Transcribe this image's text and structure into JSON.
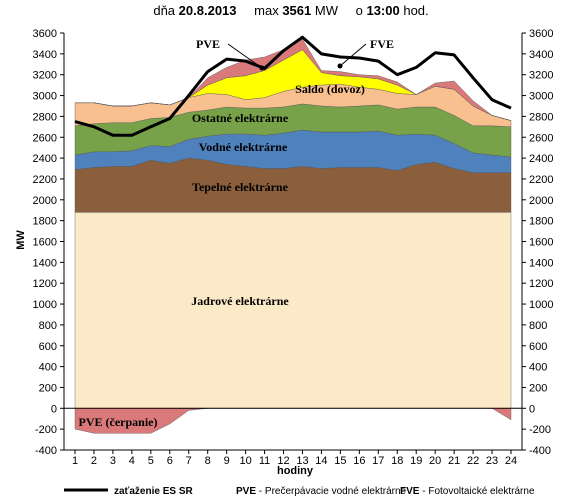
{
  "header": {
    "prefix": "dňa",
    "date": "20.8.2013",
    "max_label": "max",
    "max_value": "3561",
    "max_unit": "MW",
    "time_prefix": "o",
    "time": "13:00",
    "time_unit": "hod."
  },
  "legend": {
    "load": {
      "key": "zaťaženie ES SR",
      "desc": ""
    },
    "pve": {
      "key": "PVE",
      "desc": " - Prečerpávacie vodné elektrárne"
    },
    "fve": {
      "key": "FVE",
      "desc": " - Fotovoltaické elektrárne"
    }
  },
  "chart_data": {
    "type": "area",
    "stacked": true,
    "xlabel": "hodiny",
    "ylabel": "MW",
    "ylim": [
      -400,
      3600
    ],
    "y_ticks": [
      -400,
      -200,
      0,
      200,
      400,
      600,
      800,
      1000,
      1200,
      1400,
      1600,
      1800,
      2000,
      2200,
      2400,
      2600,
      2800,
      3000,
      3200,
      3400,
      3600
    ],
    "x": [
      1,
      2,
      3,
      4,
      5,
      6,
      7,
      8,
      9,
      10,
      11,
      12,
      13,
      14,
      15,
      16,
      17,
      18,
      19,
      20,
      21,
      22,
      23,
      24
    ],
    "grid": false,
    "secondary_axis": true,
    "series": [
      {
        "name": "Jadrové elektrárne",
        "color": "#fce9c8",
        "values": [
          1880,
          1880,
          1880,
          1880,
          1880,
          1880,
          1880,
          1880,
          1880,
          1880,
          1880,
          1880,
          1880,
          1880,
          1880,
          1880,
          1880,
          1880,
          1880,
          1880,
          1880,
          1880,
          1880,
          1880
        ]
      },
      {
        "name": "Tepelné elektrárne",
        "color": "#8b5e3c",
        "values": [
          410,
          430,
          440,
          440,
          500,
          470,
          520,
          500,
          460,
          440,
          420,
          420,
          440,
          420,
          430,
          430,
          430,
          400,
          460,
          480,
          420,
          380,
          380,
          380
        ]
      },
      {
        "name": "Vodné elektrárne",
        "color": "#4f81bd",
        "values": [
          140,
          150,
          140,
          150,
          140,
          160,
          180,
          230,
          290,
          310,
          320,
          340,
          350,
          350,
          340,
          340,
          350,
          340,
          290,
          260,
          240,
          190,
          170,
          150
        ]
      },
      {
        "name": "Ostatné elektrárne",
        "color": "#77a24a",
        "values": [
          280,
          270,
          280,
          270,
          260,
          280,
          260,
          250,
          260,
          250,
          260,
          250,
          250,
          250,
          240,
          250,
          250,
          250,
          260,
          270,
          270,
          260,
          280,
          290
        ]
      },
      {
        "name": "Saldo (dovoz)",
        "color": "#f9c08f",
        "values": [
          220,
          200,
          160,
          160,
          150,
          120,
          140,
          160,
          120,
          80,
          100,
          150,
          160,
          200,
          220,
          180,
          150,
          150,
          120,
          200,
          250,
          190,
          100,
          60
        ]
      },
      {
        "name": "FVE",
        "color": "#ffff00",
        "values": [
          0,
          0,
          0,
          0,
          0,
          0,
          0,
          80,
          160,
          230,
          260,
          300,
          360,
          120,
          80,
          100,
          100,
          80,
          0,
          0,
          0,
          0,
          0,
          0
        ]
      },
      {
        "name": "PVE",
        "color": "#d9797a",
        "values": [
          0,
          0,
          0,
          0,
          0,
          0,
          0,
          70,
          100,
          150,
          130,
          100,
          100,
          20,
          40,
          20,
          30,
          30,
          0,
          30,
          80,
          50,
          0,
          0
        ]
      },
      {
        "name": "PVE (čerpanie)",
        "color": "#d9797a",
        "negative": true,
        "values": [
          -200,
          -240,
          -240,
          -240,
          -240,
          -150,
          -20,
          0,
          0,
          0,
          0,
          0,
          0,
          0,
          0,
          0,
          0,
          0,
          0,
          0,
          0,
          0,
          0,
          -110
        ]
      },
      {
        "name": "zaťaženie ES SR",
        "color": "#000000",
        "line": true,
        "values": [
          2750,
          2700,
          2620,
          2620,
          2700,
          2780,
          3000,
          3230,
          3350,
          3330,
          3260,
          3430,
          3560,
          3400,
          3370,
          3360,
          3330,
          3200,
          3270,
          3410,
          3390,
          3170,
          2960,
          2880
        ]
      }
    ],
    "area_labels": [
      "Jadrové elektrárne",
      "Tepelné elektrárne",
      "Vodné elektrárne",
      "Ostatné elektrárne",
      "Saldo (dovoz)",
      "PVE",
      "FVE",
      "PVE  (čerpanie)"
    ]
  }
}
